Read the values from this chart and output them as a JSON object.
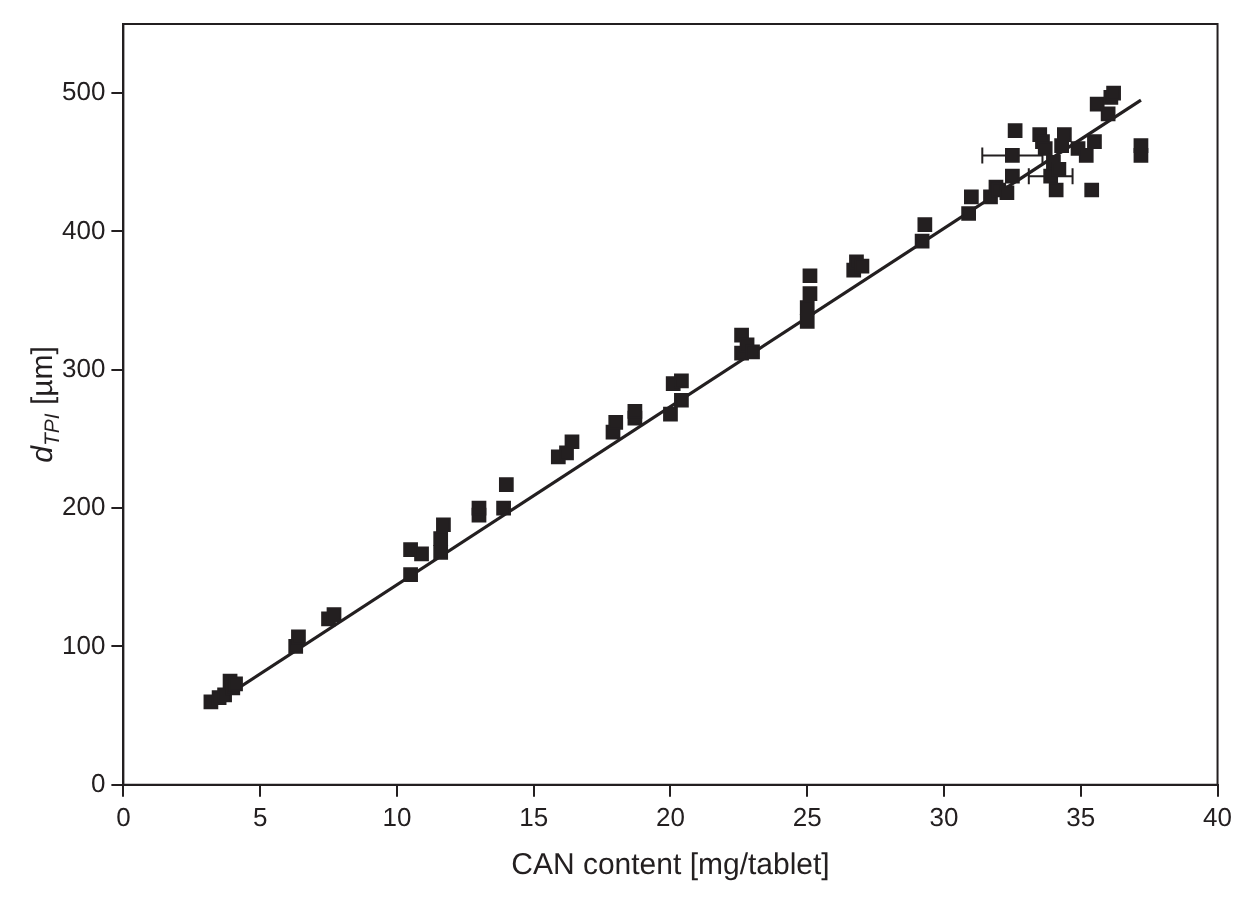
{
  "chart_data": {
    "type": "scatter",
    "xlabel": "CAN content [mg/tablet]",
    "ylabel": "d$_{TPI}$ [µm]",
    "xlim": [
      0,
      40
    ],
    "xticks": [
      0,
      5,
      10,
      15,
      20,
      25,
      30,
      35,
      40
    ],
    "ylim": [
      0,
      550
    ],
    "yticks": [
      0,
      100,
      200,
      300,
      400,
      500
    ],
    "grid": false,
    "legend": false,
    "marker": "square",
    "series": [
      {
        "color": "#231f20",
        "x": [
          3.2,
          3.5,
          3.7,
          3.9,
          4.0,
          4.1,
          6.3,
          6.4,
          7.5,
          7.7,
          10.5,
          10.5,
          10.9,
          11.6,
          11.6,
          11.7,
          13.0,
          13.0,
          13.9,
          14.0,
          15.9,
          16.2,
          16.4,
          17.9,
          18.0,
          18.7,
          18.7,
          20.0,
          20.1,
          20.4,
          20.4,
          22.6,
          22.6,
          22.8,
          23.0,
          25.0,
          25.0,
          25.1,
          25.1,
          26.7,
          26.8,
          27.0,
          29.2,
          29.3,
          30.9,
          31.0,
          31.7,
          31.9,
          32.0,
          32.3,
          32.5,
          32.5,
          32.6,
          33.5,
          33.6,
          33.7,
          33.9,
          34.0,
          34.1,
          34.2,
          34.3,
          34.4,
          34.9,
          35.2,
          35.4,
          35.5,
          35.6,
          36.0,
          36.1,
          36.2,
          37.2,
          37.2
        ],
        "values": [
          60,
          63,
          65,
          75,
          70,
          73,
          100,
          107,
          120,
          123,
          152,
          170,
          167,
          168,
          178,
          188,
          195,
          200,
          200,
          217,
          237,
          240,
          248,
          255,
          262,
          265,
          270,
          268,
          290,
          278,
          292,
          312,
          325,
          318,
          313,
          335,
          345,
          355,
          368,
          372,
          378,
          375,
          393,
          405,
          413,
          425,
          425,
          432,
          430,
          428,
          440,
          455,
          473,
          470,
          465,
          460,
          440,
          450,
          430,
          445,
          462,
          470,
          460,
          455,
          430,
          465,
          492,
          485,
          497,
          500,
          455,
          462
        ],
        "xerrors": [
          null,
          null,
          null,
          null,
          null,
          null,
          null,
          null,
          null,
          null,
          null,
          null,
          null,
          null,
          null,
          null,
          null,
          null,
          null,
          null,
          null,
          null,
          null,
          null,
          null,
          null,
          null,
          null,
          null,
          null,
          null,
          null,
          null,
          null,
          null,
          null,
          null,
          null,
          null,
          null,
          null,
          null,
          null,
          null,
          null,
          null,
          null,
          null,
          null,
          null,
          null,
          1.1,
          null,
          null,
          null,
          null,
          0.8,
          null,
          null,
          null,
          null,
          null,
          null,
          null,
          null,
          null,
          null,
          null,
          null,
          null,
          null,
          null
        ]
      },
      {
        "type": "line",
        "color": "#231f20",
        "x": [
          3.2,
          37.2
        ],
        "values": [
          57,
          495
        ],
        "marker": "none"
      }
    ]
  }
}
